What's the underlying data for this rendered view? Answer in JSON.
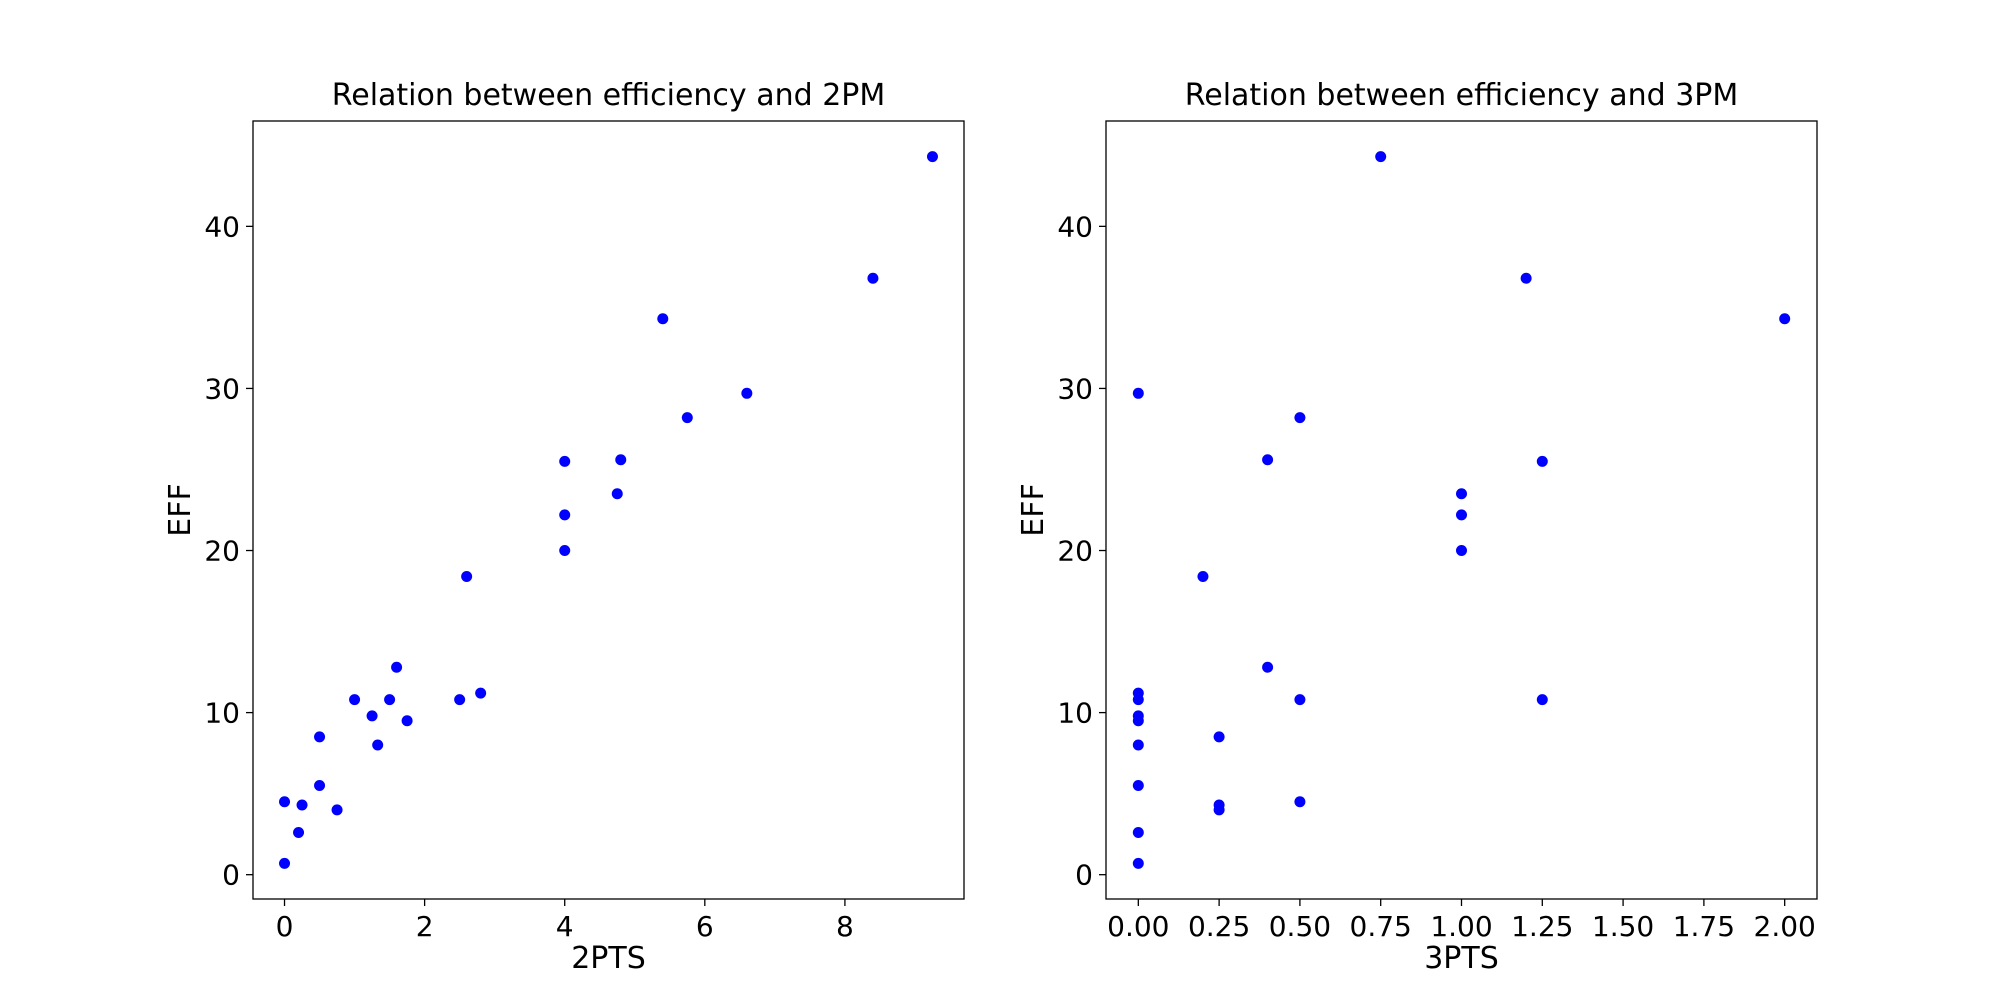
{
  "chart_data": [
    {
      "type": "scatter",
      "title": "Relation between efficiency and 2PM",
      "xlabel": "2PTS",
      "ylabel": "EFF",
      "xlim": [
        -0.45,
        9.7
      ],
      "ylim": [
        -1.5,
        46.5
      ],
      "xticks": [
        0,
        2,
        4,
        6,
        8
      ],
      "xtick_labels": [
        "0",
        "2",
        "4",
        "6",
        "8"
      ],
      "yticks": [
        0,
        10,
        20,
        30,
        40
      ],
      "ytick_labels": [
        "0",
        "10",
        "20",
        "30",
        "40"
      ],
      "grid": false,
      "color": "#0000ff",
      "points": [
        {
          "x": 0.0,
          "y": 0.7
        },
        {
          "x": 0.0,
          "y": 4.5
        },
        {
          "x": 0.2,
          "y": 2.6
        },
        {
          "x": 0.25,
          "y": 4.3
        },
        {
          "x": 0.5,
          "y": 5.5
        },
        {
          "x": 0.5,
          "y": 8.5
        },
        {
          "x": 0.75,
          "y": 4.0
        },
        {
          "x": 1.0,
          "y": 10.8
        },
        {
          "x": 1.25,
          "y": 9.8
        },
        {
          "x": 1.33,
          "y": 8.0
        },
        {
          "x": 1.5,
          "y": 10.8
        },
        {
          "x": 1.6,
          "y": 12.8
        },
        {
          "x": 1.75,
          "y": 9.5
        },
        {
          "x": 2.5,
          "y": 10.8
        },
        {
          "x": 2.6,
          "y": 18.4
        },
        {
          "x": 2.8,
          "y": 11.2
        },
        {
          "x": 4.0,
          "y": 20.0
        },
        {
          "x": 4.0,
          "y": 22.2
        },
        {
          "x": 4.0,
          "y": 25.5
        },
        {
          "x": 4.75,
          "y": 23.5
        },
        {
          "x": 4.8,
          "y": 25.6
        },
        {
          "x": 5.4,
          "y": 34.3
        },
        {
          "x": 5.75,
          "y": 28.2
        },
        {
          "x": 6.6,
          "y": 29.7
        },
        {
          "x": 8.4,
          "y": 36.8
        },
        {
          "x": 9.25,
          "y": 44.3
        }
      ]
    },
    {
      "type": "scatter",
      "title": "Relation between efficiency and 3PM",
      "xlabel": "3PTS",
      "ylabel": "EFF",
      "xlim": [
        -0.1,
        2.1
      ],
      "ylim": [
        -1.5,
        46.5
      ],
      "xticks": [
        0,
        0.25,
        0.5,
        0.75,
        1.0,
        1.25,
        1.5,
        1.75,
        2.0
      ],
      "xtick_labels": [
        "0.00",
        "0.25",
        "0.50",
        "0.75",
        "1.00",
        "1.25",
        "1.50",
        "1.75",
        "2.00"
      ],
      "yticks": [
        0,
        10,
        20,
        30,
        40
      ],
      "ytick_labels": [
        "0",
        "10",
        "20",
        "30",
        "40"
      ],
      "grid": false,
      "color": "#0000ff",
      "points": [
        {
          "x": 0.0,
          "y": 0.7
        },
        {
          "x": 0.0,
          "y": 2.6
        },
        {
          "x": 0.0,
          "y": 5.5
        },
        {
          "x": 0.0,
          "y": 8.0
        },
        {
          "x": 0.0,
          "y": 9.5
        },
        {
          "x": 0.0,
          "y": 9.8
        },
        {
          "x": 0.0,
          "y": 10.8
        },
        {
          "x": 0.0,
          "y": 11.2
        },
        {
          "x": 0.0,
          "y": 29.7
        },
        {
          "x": 0.2,
          "y": 18.4
        },
        {
          "x": 0.25,
          "y": 4.0
        },
        {
          "x": 0.25,
          "y": 4.3
        },
        {
          "x": 0.25,
          "y": 8.5
        },
        {
          "x": 0.4,
          "y": 12.8
        },
        {
          "x": 0.4,
          "y": 25.6
        },
        {
          "x": 0.5,
          "y": 4.5
        },
        {
          "x": 0.5,
          "y": 10.8
        },
        {
          "x": 0.5,
          "y": 28.2
        },
        {
          "x": 0.75,
          "y": 44.3
        },
        {
          "x": 1.0,
          "y": 20.0
        },
        {
          "x": 1.0,
          "y": 22.2
        },
        {
          "x": 1.0,
          "y": 23.5
        },
        {
          "x": 1.2,
          "y": 36.8
        },
        {
          "x": 1.25,
          "y": 10.8
        },
        {
          "x": 1.25,
          "y": 25.5
        },
        {
          "x": 2.0,
          "y": 34.3
        }
      ]
    }
  ]
}
